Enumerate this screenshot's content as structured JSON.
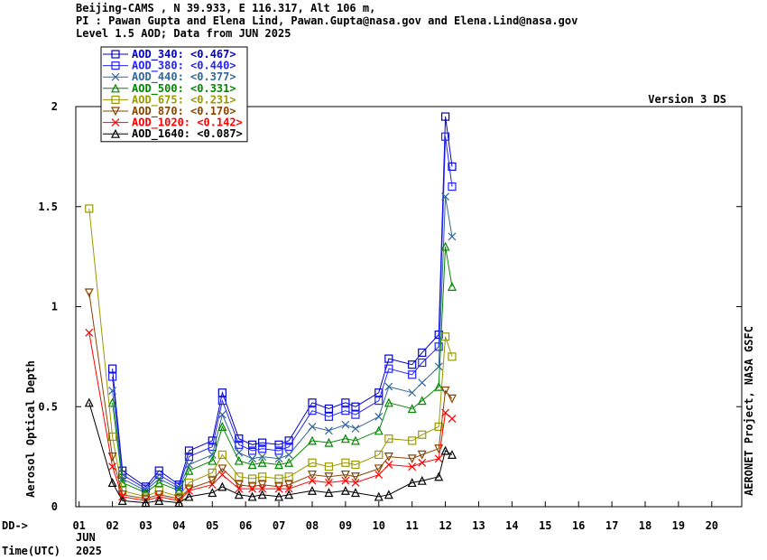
{
  "header": {
    "line1": "Beijing-CAMS , N 39.933, E 116.317, Alt 106 m,",
    "line2": "PI : Pawan Gupta and Elena Lind, Pawan.Gupta@nasa.gov and Elena.Lind@nasa.gov",
    "line3": "Level 1.5 AOD; Data from JUN 2025"
  },
  "version_label": "Version 3 DS",
  "side_label": "AERONET Project, NASA GSFC",
  "x_prefix": "DD->",
  "x_month": "JUN",
  "x_year": "2025",
  "x_time_label": "Time(UTC)",
  "chart_data": {
    "type": "line",
    "ylabel": "Aerosol Optical Depth",
    "ylim": [
      0,
      2
    ],
    "y_ticks": [
      "0",
      "0.5",
      "1",
      "1.5",
      "2"
    ],
    "xlim": [
      0.9,
      20.9
    ],
    "x_ticks": [
      "01",
      "02",
      "03",
      "04",
      "05",
      "06",
      "07",
      "08",
      "09",
      "10",
      "11",
      "12",
      "13",
      "14",
      "15",
      "16",
      "17",
      "18",
      "19",
      "20"
    ],
    "grid": false,
    "legend_position": "top-left",
    "series": [
      {
        "name": "AOD_340: <0.467>",
        "color": "#0000cc",
        "marker": "square",
        "x": [
          2.0,
          2.3,
          3.0,
          3.4,
          4.0,
          4.3,
          5.0,
          5.3,
          5.8,
          6.2,
          6.5,
          7.0,
          7.3,
          8.0,
          8.5,
          9.0,
          9.3,
          10.0,
          10.3,
          11.0,
          11.3,
          11.8,
          12.0,
          12.2
        ],
        "y": [
          0.69,
          0.18,
          0.1,
          0.18,
          0.11,
          0.28,
          0.33,
          0.57,
          0.34,
          0.31,
          0.32,
          0.31,
          0.33,
          0.52,
          0.49,
          0.52,
          0.5,
          0.57,
          0.74,
          0.71,
          0.77,
          0.86,
          1.95,
          1.7
        ]
      },
      {
        "name": "AOD_380: <0.440>",
        "color": "#2222ff",
        "marker": "square",
        "x": [
          2.0,
          2.3,
          3.0,
          3.4,
          4.0,
          4.3,
          5.0,
          5.3,
          5.8,
          6.2,
          6.5,
          7.0,
          7.3,
          8.0,
          8.5,
          9.0,
          9.3,
          10.0,
          10.3,
          11.0,
          11.3,
          11.8,
          12.0,
          12.2
        ],
        "y": [
          0.65,
          0.16,
          0.09,
          0.16,
          0.1,
          0.25,
          0.3,
          0.53,
          0.31,
          0.28,
          0.29,
          0.28,
          0.3,
          0.48,
          0.45,
          0.48,
          0.46,
          0.53,
          0.69,
          0.66,
          0.72,
          0.8,
          1.85,
          1.6
        ]
      },
      {
        "name": "AOD_440: <0.377>",
        "color": "#336699",
        "marker": "x",
        "x": [
          2.0,
          2.3,
          3.0,
          3.4,
          4.0,
          4.3,
          5.0,
          5.3,
          5.8,
          6.2,
          6.5,
          7.0,
          7.3,
          8.0,
          8.5,
          9.0,
          9.3,
          10.0,
          10.3,
          11.0,
          11.3,
          11.8,
          12.0,
          12.2
        ],
        "y": [
          0.58,
          0.14,
          0.08,
          0.14,
          0.09,
          0.21,
          0.26,
          0.46,
          0.27,
          0.24,
          0.25,
          0.24,
          0.26,
          0.4,
          0.38,
          0.41,
          0.39,
          0.45,
          0.6,
          0.57,
          0.62,
          0.7,
          1.55,
          1.35
        ]
      },
      {
        "name": "AOD_500: <0.331>",
        "color": "#008800",
        "marker": "triangle-up",
        "x": [
          2.0,
          2.3,
          3.0,
          3.4,
          4.0,
          4.3,
          5.0,
          5.3,
          5.8,
          6.2,
          6.5,
          7.0,
          7.3,
          8.0,
          8.5,
          9.0,
          9.3,
          10.0,
          10.3,
          11.0,
          11.3,
          11.8,
          12.0,
          12.2
        ],
        "y": [
          0.52,
          0.12,
          0.07,
          0.12,
          0.08,
          0.18,
          0.23,
          0.4,
          0.23,
          0.21,
          0.22,
          0.21,
          0.22,
          0.33,
          0.32,
          0.34,
          0.33,
          0.38,
          0.52,
          0.49,
          0.53,
          0.6,
          1.3,
          1.1
        ]
      },
      {
        "name": "AOD_675: <0.231>",
        "color": "#999900",
        "marker": "square",
        "x": [
          1.3,
          2.0,
          2.3,
          3.0,
          3.4,
          4.0,
          4.3,
          5.0,
          5.3,
          5.8,
          6.2,
          6.5,
          7.0,
          7.3,
          8.0,
          8.5,
          9.0,
          9.3,
          10.0,
          10.3,
          11.0,
          11.3,
          11.8,
          12.0,
          12.2
        ],
        "y": [
          1.49,
          0.35,
          0.08,
          0.05,
          0.08,
          0.05,
          0.12,
          0.17,
          0.26,
          0.15,
          0.14,
          0.15,
          0.14,
          0.15,
          0.22,
          0.2,
          0.22,
          0.21,
          0.26,
          0.34,
          0.33,
          0.36,
          0.4,
          0.85,
          0.75
        ]
      },
      {
        "name": "AOD_870: <0.170>",
        "color": "#884400",
        "marker": "triangle-down",
        "x": [
          1.3,
          2.0,
          2.3,
          3.0,
          3.4,
          4.0,
          4.3,
          5.0,
          5.3,
          5.8,
          6.2,
          6.5,
          7.0,
          7.3,
          8.0,
          8.5,
          9.0,
          9.3,
          10.0,
          10.3,
          11.0,
          11.3,
          11.8,
          12.0,
          12.2
        ],
        "y": [
          1.07,
          0.25,
          0.06,
          0.04,
          0.06,
          0.04,
          0.09,
          0.13,
          0.19,
          0.11,
          0.1,
          0.11,
          0.1,
          0.11,
          0.16,
          0.15,
          0.16,
          0.15,
          0.19,
          0.25,
          0.24,
          0.26,
          0.29,
          0.58,
          0.54
        ]
      },
      {
        "name": "AOD_1020: <0.142>",
        "color": "#ff0000",
        "marker": "x",
        "x": [
          1.3,
          2.0,
          2.3,
          3.0,
          3.4,
          4.0,
          4.3,
          5.0,
          5.3,
          5.8,
          6.2,
          6.5,
          7.0,
          7.3,
          8.0,
          8.5,
          9.0,
          9.3,
          10.0,
          10.3,
          11.0,
          11.3,
          11.8,
          12.0,
          12.2
        ],
        "y": [
          0.87,
          0.2,
          0.05,
          0.03,
          0.05,
          0.03,
          0.08,
          0.11,
          0.16,
          0.09,
          0.09,
          0.09,
          0.09,
          0.09,
          0.13,
          0.12,
          0.13,
          0.12,
          0.16,
          0.21,
          0.2,
          0.22,
          0.24,
          0.47,
          0.44
        ]
      },
      {
        "name": "AOD_1640: <0.087>",
        "color": "#000000",
        "marker": "triangle-up",
        "x": [
          1.3,
          2.0,
          2.3,
          3.0,
          3.4,
          4.0,
          4.3,
          5.0,
          5.3,
          5.8,
          6.2,
          6.5,
          7.0,
          7.3,
          8.0,
          8.5,
          9.0,
          9.3,
          10.0,
          10.3,
          11.0,
          11.3,
          11.8,
          12.0,
          12.2
        ],
        "y": [
          0.52,
          0.12,
          0.03,
          0.02,
          0.03,
          0.02,
          0.05,
          0.07,
          0.1,
          0.06,
          0.05,
          0.06,
          0.05,
          0.06,
          0.08,
          0.07,
          0.08,
          0.07,
          0.05,
          0.06,
          0.12,
          0.13,
          0.15,
          0.28,
          0.26
        ]
      }
    ]
  }
}
